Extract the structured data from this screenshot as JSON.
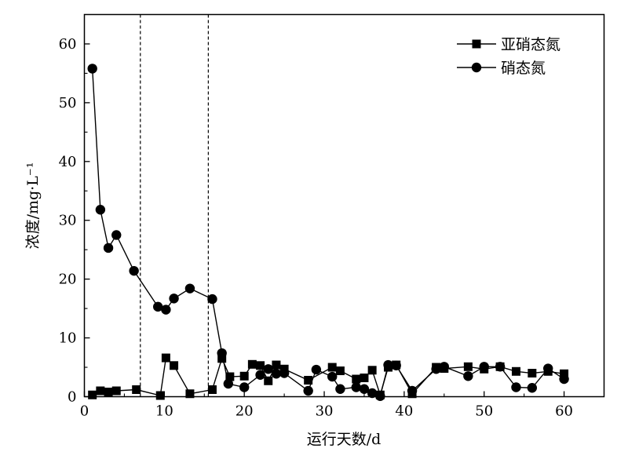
{
  "chart_data": {
    "type": "line",
    "xlabel": "运行天数/d",
    "ylabel": "浓度/mg·L⁻¹",
    "xlim": [
      0,
      65
    ],
    "ylim": [
      0,
      65
    ],
    "xticks": [
      "0",
      "10",
      "20",
      "30",
      "40",
      "50",
      "60"
    ],
    "yticks": [
      "0",
      "10",
      "20",
      "30",
      "40",
      "50",
      "60"
    ],
    "grid": false,
    "legend_position": "top-right",
    "vertical_lines": [
      7,
      15.5
    ],
    "series": [
      {
        "name": "亚硝态氮",
        "marker": "square",
        "x": [
          1,
          2,
          3,
          4,
          6.5,
          9.5,
          10.2,
          11.2,
          13.2,
          16,
          17.2,
          18.2,
          20,
          21,
          22,
          23,
          24,
          25,
          28,
          31,
          32,
          34,
          35,
          36,
          37,
          38,
          39,
          41,
          44,
          45,
          48,
          50,
          52,
          54,
          56,
          58,
          60
        ],
        "y": [
          0.3,
          1.0,
          0.8,
          1.0,
          1.2,
          0.2,
          6.6,
          5.3,
          0.5,
          1.2,
          6.5,
          3.4,
          3.5,
          5.5,
          5.3,
          2.7,
          5.4,
          4.7,
          2.8,
          5.0,
          4.4,
          3.0,
          3.2,
          4.5,
          0.3,
          5.0,
          5.4,
          0.5,
          5.0,
          4.8,
          5.1,
          4.7,
          5.1,
          4.3,
          4.0,
          4.3,
          3.9
        ]
      },
      {
        "name": "硝态氮",
        "marker": "circle",
        "x": [
          1,
          2,
          3,
          4,
          6.2,
          9.2,
          10.2,
          11.2,
          13.2,
          16,
          17.2,
          18,
          20,
          22,
          23,
          24,
          25,
          28,
          29,
          31,
          32,
          34,
          35,
          36,
          37,
          38,
          39,
          41,
          44,
          45,
          48,
          50,
          52,
          54,
          56,
          58,
          60
        ],
        "y": [
          55.8,
          31.8,
          25.3,
          27.5,
          21.4,
          15.3,
          14.8,
          16.7,
          18.4,
          16.6,
          7.4,
          2.2,
          1.6,
          3.7,
          4.7,
          3.9,
          4.0,
          1.0,
          4.6,
          3.4,
          1.3,
          1.6,
          1.3,
          0.6,
          0.1,
          5.4,
          5.3,
          1.0,
          4.7,
          5.1,
          3.5,
          5.1,
          5.1,
          1.6,
          1.5,
          4.8,
          3.0
        ]
      }
    ]
  }
}
